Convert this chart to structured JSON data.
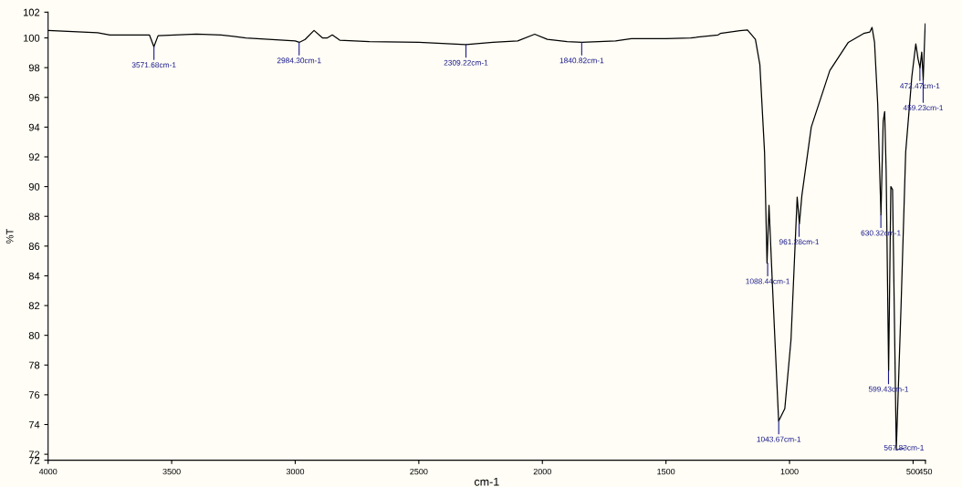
{
  "chart_data": {
    "type": "line",
    "xlabel": "cm-1",
    "ylabel": "%T",
    "xlim": [
      4000,
      450
    ],
    "ylim": [
      71.6,
      101.73
    ],
    "xticks": [
      4000,
      3500,
      3000,
      2500,
      2000,
      1500,
      1000,
      500,
      450
    ],
    "yticks": [
      {
        "value": 101.73,
        "label": "102"
      },
      100,
      98,
      96,
      94,
      92,
      90,
      88,
      86,
      84,
      82,
      80,
      78,
      76,
      74,
      72,
      {
        "value": 71.6,
        "label": "72"
      }
    ],
    "grid": false,
    "legend": false,
    "marker": "none",
    "line_style": "solid",
    "series": [
      {
        "color": "#000000",
        "x": [
          4000,
          3800,
          3750,
          3650,
          3590,
          3572,
          3555,
          3400,
          3300,
          3200,
          3000,
          2984,
          2960,
          2924,
          2890,
          2870,
          2850,
          2820,
          2700,
          2500,
          2309,
          2200,
          2100,
          2031,
          1980,
          1900,
          1840,
          1704,
          1640,
          1500,
          1400,
          1289,
          1280,
          1201,
          1170,
          1138,
          1120,
          1101,
          1091,
          1083,
          1070,
          1044,
          1019,
          994,
          969,
          960,
          950,
          912,
          837,
          762,
          700,
          675,
          666,
          656,
          643,
          630,
          621,
          615,
          609,
          599,
          590,
          583,
          568,
          549,
          530,
          505,
          489,
          480,
          472,
          465,
          459,
          451,
          450
        ],
        "values": [
          100.5,
          100.35,
          100.2,
          100.2,
          100.2,
          99.4,
          100.15,
          100.25,
          100.2,
          100.0,
          99.8,
          99.7,
          99.9,
          100.5,
          100.0,
          100.0,
          100.2,
          99.85,
          99.75,
          99.7,
          99.55,
          99.7,
          99.8,
          100.25,
          99.9,
          99.75,
          99.7,
          99.8,
          99.95,
          99.95,
          100.0,
          100.2,
          100.3,
          100.49,
          100.53,
          99.9,
          98.2,
          92.3,
          84.85,
          88.74,
          83.7,
          74.23,
          75.07,
          79.7,
          89.3,
          87.5,
          89.4,
          94.0,
          97.8,
          99.7,
          100.3,
          100.4,
          100.7,
          99.7,
          95.5,
          88.1,
          94.4,
          95.05,
          91.06,
          77.6,
          90.0,
          89.8,
          72.3,
          81.8,
          92.3,
          97.4,
          99.6,
          98.6,
          97.99,
          99.05,
          97.2,
          100.95,
          100.5
        ]
      }
    ],
    "annotations": [
      {
        "text": "3571.68cm-1",
        "x": 3571.68,
        "y": 99.4
      },
      {
        "text": "2984.30cm-1",
        "x": 2984.3,
        "y": 99.7
      },
      {
        "text": "2309.22cm-1",
        "x": 2309.22,
        "y": 99.55
      },
      {
        "text": "1840.82cm-1",
        "x": 1840.82,
        "y": 99.7
      },
      {
        "text": "1088.44cm-1",
        "x": 1088.44,
        "y": 84.85
      },
      {
        "text": "1043.67cm-1",
        "x": 1043.67,
        "y": 74.23
      },
      {
        "text": "961.28cm-1",
        "x": 961.28,
        "y": 87.5
      },
      {
        "text": "630.32cm-1",
        "x": 630.32,
        "y": 88.1
      },
      {
        "text": "599.43cm-1",
        "x": 599.43,
        "y": 77.6
      },
      {
        "text": "567.83cm-1",
        "x": 567.83,
        "y": 72.3
      },
      {
        "text": "472.47cm-1",
        "x": 472.47,
        "y": 97.99
      },
      {
        "text": "459.23cm-1",
        "x": 459.23,
        "y": 97.2
      }
    ]
  }
}
